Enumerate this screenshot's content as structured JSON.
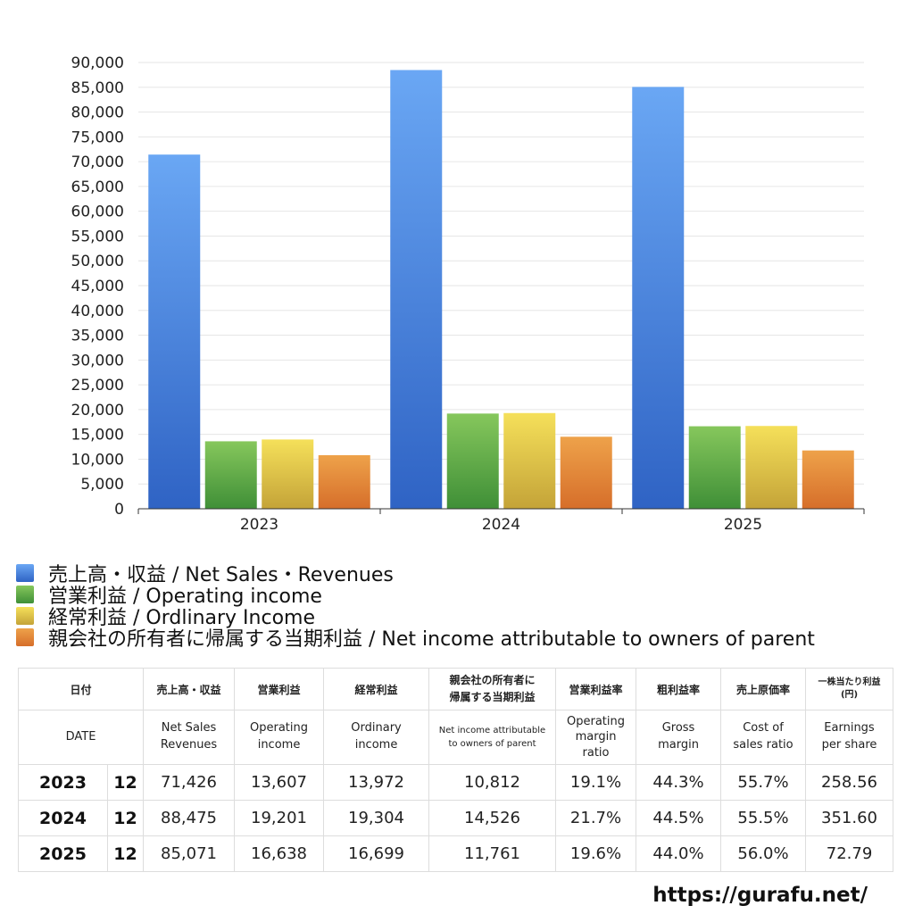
{
  "chart_data": {
    "type": "bar",
    "categories": [
      "2023",
      "2024",
      "2025"
    ],
    "series": [
      {
        "name": "売上高・収益 / Net Sales・Revenues",
        "values": [
          71426,
          88475,
          85071
        ],
        "color_top": "#6aa7f4",
        "color_bottom": "#2f63c4"
      },
      {
        "name": "営業利益 / Operating income",
        "values": [
          13607,
          19201,
          16638
        ],
        "color_top": "#86c75c",
        "color_bottom": "#3f8f37"
      },
      {
        "name": "経常利益 / Ordlinary Income",
        "values": [
          13972,
          19304,
          16699
        ],
        "color_top": "#f5e05a",
        "color_bottom": "#c4a338"
      },
      {
        "name": "親会社の所有者に帰属する当期利益 / Net income attributable to owners of parent",
        "values": [
          10812,
          14526,
          11761
        ],
        "color_top": "#eea24a",
        "color_bottom": "#d66e2a"
      }
    ],
    "yticks": [
      "0",
      "5,000",
      "10,000",
      "15,000",
      "20,000",
      "25,000",
      "30,000",
      "35,000",
      "40,000",
      "45,000",
      "50,000",
      "55,000",
      "60,000",
      "65,000",
      "70,000",
      "75,000",
      "80,000",
      "85,000",
      "90,000"
    ],
    "ylim": [
      0,
      90000
    ],
    "grid": true,
    "legend_position": "bottom-left"
  },
  "table": {
    "headers_ja": [
      "日付",
      "売上高・収益",
      "営業利益",
      "経常利益",
      "親会社の所有者に\n帰属する当期利益",
      "営業利益率",
      "粗利益率",
      "売上原価率",
      "一株当たり利益\n(円)"
    ],
    "headers_en": [
      "DATE",
      "Net Sales\nRevenues",
      "Operating\nincome",
      "Ordinary\nincome",
      "Net income attributable\nto owners of parent",
      "Operating\nmargin\nratio",
      "Gross\nmargin",
      "Cost of\nsales ratio",
      "Earnings\nper share"
    ],
    "rows": [
      {
        "year": "2023",
        "month": "12",
        "net_sales": "71,426",
        "operating_income": "13,607",
        "ordinary_income": "13,972",
        "net_income": "10,812",
        "op_margin": "19.1%",
        "gross_margin": "44.3%",
        "cost_ratio": "55.7%",
        "eps": "258.56"
      },
      {
        "year": "2024",
        "month": "12",
        "net_sales": "88,475",
        "operating_income": "19,201",
        "ordinary_income": "19,304",
        "net_income": "14,526",
        "op_margin": "21.7%",
        "gross_margin": "44.5%",
        "cost_ratio": "55.5%",
        "eps": "351.60"
      },
      {
        "year": "2025",
        "month": "12",
        "net_sales": "85,071",
        "operating_income": "16,638",
        "ordinary_income": "16,699",
        "net_income": "11,761",
        "op_margin": "19.6%",
        "gross_margin": "44.0%",
        "cost_ratio": "56.0%",
        "eps": "72.79"
      }
    ]
  },
  "source": "https://gurafu.net/"
}
